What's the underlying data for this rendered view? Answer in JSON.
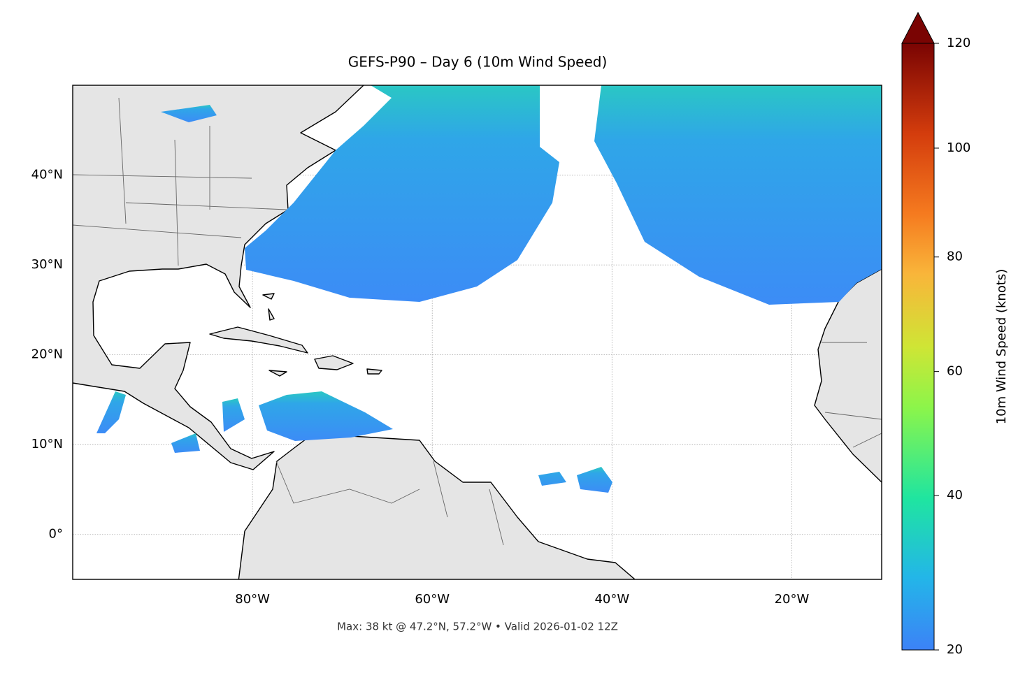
{
  "title": "GEFS-P90 – Day 6 (10m Wind Speed)",
  "footer": "Max: 38 kt @ 47.2°N, 57.2°W • Valid 2026-01-02 12Z",
  "map": {
    "lon_extent": [
      -100,
      -10
    ],
    "lat_extent": [
      -5,
      50
    ],
    "grid": true,
    "lon_ticks": [
      {
        "value": -80,
        "label": "80°W"
      },
      {
        "value": -60,
        "label": "60°W"
      },
      {
        "value": -40,
        "label": "40°W"
      },
      {
        "value": -20,
        "label": "20°W"
      }
    ],
    "lat_ticks": [
      {
        "value": 40,
        "label": "40°N"
      },
      {
        "value": 30,
        "label": "30°N"
      },
      {
        "value": 20,
        "label": "20°N"
      },
      {
        "value": 10,
        "label": "10°N"
      },
      {
        "value": 0,
        "label": "0°"
      }
    ]
  },
  "colorbar": {
    "label": "10m Wind Speed (knots)",
    "lim": [
      20,
      120
    ],
    "ticks": [
      20,
      40,
      60,
      80,
      100,
      120
    ],
    "norm": "power",
    "gamma": 0.85,
    "extend": "max"
  }
}
